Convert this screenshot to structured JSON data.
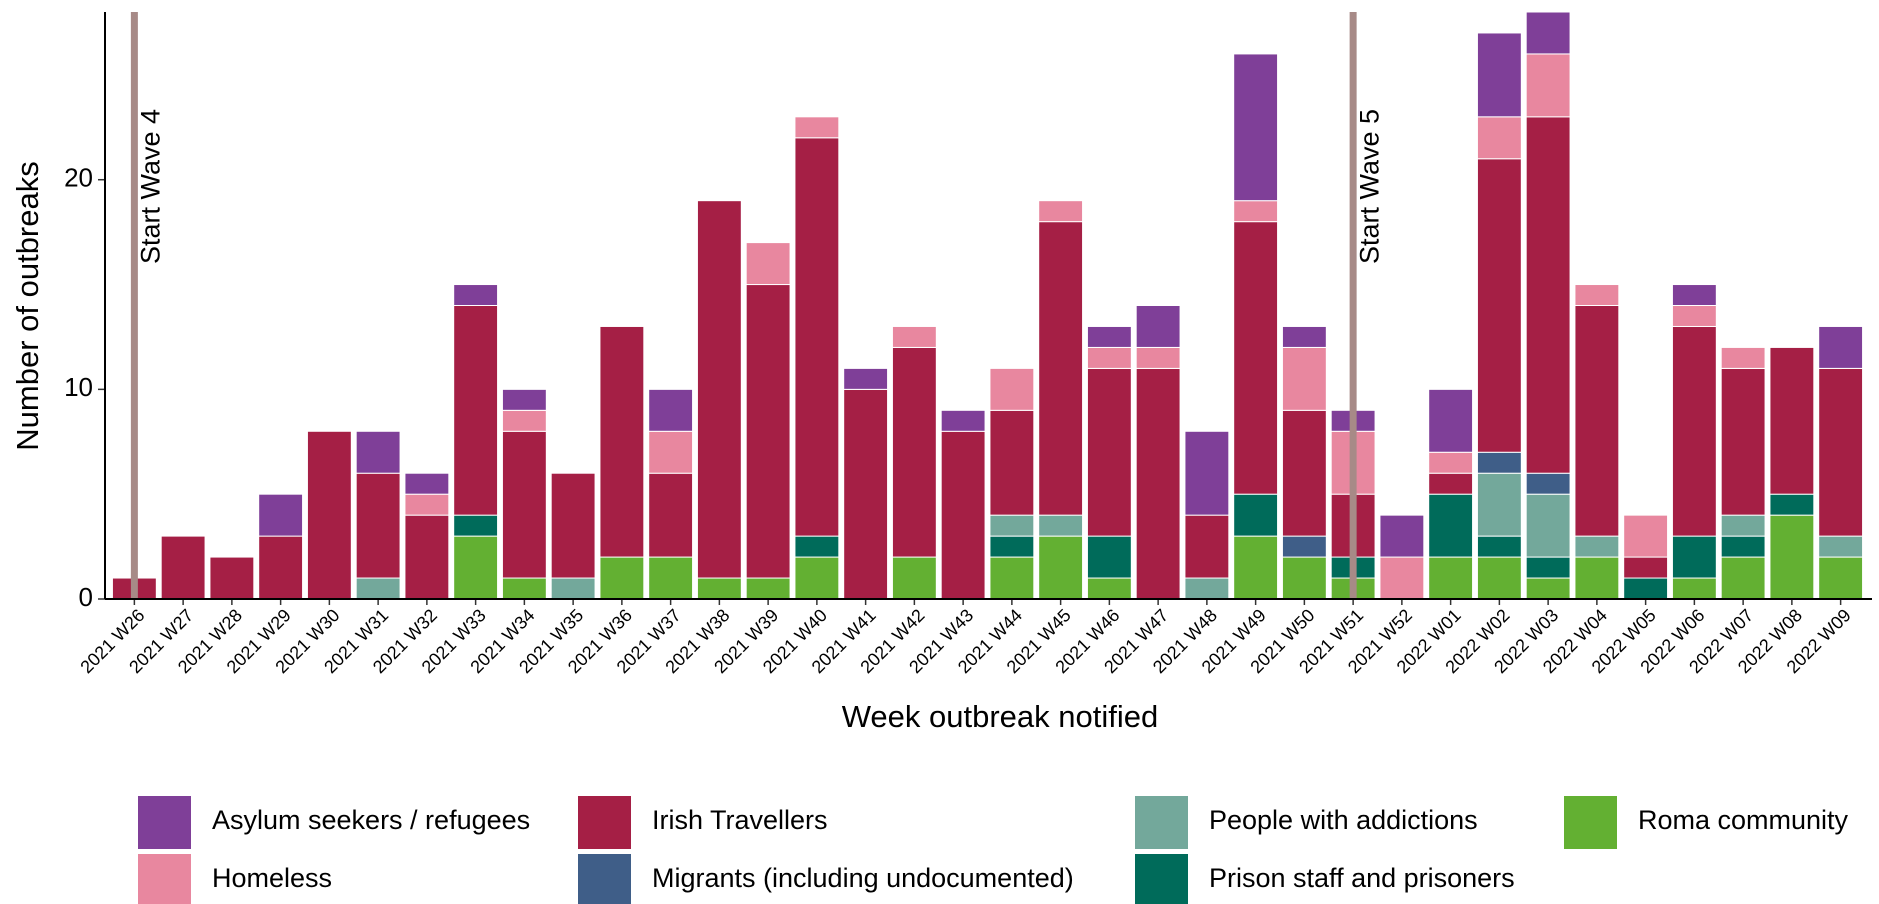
{
  "chart_data": {
    "type": "stacked-bar",
    "x_label": "Week outbreak notified",
    "y_label": "Number of outbreaks",
    "categories": [
      "2021 W26",
      "2021 W27",
      "2021 W28",
      "2021 W29",
      "2021 W30",
      "2021 W31",
      "2021 W32",
      "2021 W33",
      "2021 W34",
      "2021 W35",
      "2021 W36",
      "2021 W37",
      "2021 W38",
      "2021 W39",
      "2021 W40",
      "2021 W41",
      "2021 W42",
      "2021 W43",
      "2021 W44",
      "2021 W45",
      "2021 W46",
      "2021 W47",
      "2021 W48",
      "2021 W49",
      "2021 W50",
      "2021 W51",
      "2021 W52",
      "2022 W01",
      "2022 W02",
      "2022 W03",
      "2022 W04",
      "2022 W05",
      "2022 W06",
      "2022 W07",
      "2022 W08",
      "2022 W09"
    ],
    "series": [
      {
        "name": "Asylum seekers / refugees",
        "color": "#7f3f98",
        "values": [
          0,
          0,
          0,
          2,
          0,
          2,
          1,
          1,
          1,
          0,
          0,
          2,
          0,
          0,
          0,
          1,
          0,
          1,
          0,
          0,
          1,
          2,
          4,
          7,
          1,
          1,
          2,
          3,
          4,
          2,
          0,
          0,
          1,
          0,
          0,
          2
        ]
      },
      {
        "name": "Homeless",
        "color": "#e8879f",
        "values": [
          0,
          0,
          0,
          0,
          0,
          0,
          1,
          0,
          1,
          0,
          0,
          2,
          0,
          2,
          1,
          0,
          1,
          0,
          2,
          1,
          1,
          1,
          0,
          1,
          3,
          3,
          2,
          1,
          2,
          3,
          1,
          2,
          1,
          1,
          0,
          0
        ]
      },
      {
        "name": "Irish Travellers",
        "color": "#a51f45",
        "values": [
          1,
          3,
          2,
          3,
          8,
          5,
          4,
          10,
          7,
          5,
          11,
          4,
          18,
          14,
          19,
          10,
          10,
          8,
          5,
          14,
          8,
          11,
          3,
          13,
          6,
          3,
          0,
          1,
          14,
          17,
          11,
          1,
          10,
          7,
          7,
          8
        ]
      },
      {
        "name": "Migrants (including undocumented)",
        "color": "#3f5e88",
        "values": [
          0,
          0,
          0,
          0,
          0,
          0,
          0,
          0,
          0,
          0,
          0,
          0,
          0,
          0,
          0,
          0,
          0,
          0,
          0,
          0,
          0,
          0,
          0,
          0,
          1,
          0,
          0,
          0,
          1,
          1,
          0,
          0,
          0,
          0,
          0,
          0
        ]
      },
      {
        "name": "People with addictions",
        "color": "#73a89b",
        "values": [
          0,
          0,
          0,
          0,
          0,
          1,
          0,
          0,
          0,
          1,
          0,
          0,
          0,
          0,
          0,
          0,
          0,
          0,
          1,
          1,
          0,
          0,
          1,
          0,
          0,
          0,
          0,
          0,
          3,
          3,
          1,
          0,
          0,
          1,
          0,
          1
        ]
      },
      {
        "name": "Prison staff and prisoners",
        "color": "#006b5a",
        "values": [
          0,
          0,
          0,
          0,
          0,
          0,
          0,
          1,
          0,
          0,
          0,
          0,
          0,
          0,
          1,
          0,
          0,
          0,
          1,
          0,
          2,
          0,
          0,
          2,
          0,
          1,
          0,
          3,
          1,
          1,
          0,
          1,
          2,
          1,
          1,
          0
        ]
      },
      {
        "name": "Roma community",
        "color": "#63b032",
        "values": [
          0,
          0,
          0,
          0,
          0,
          0,
          0,
          3,
          1,
          0,
          2,
          2,
          1,
          1,
          2,
          0,
          2,
          0,
          2,
          3,
          1,
          0,
          0,
          3,
          2,
          1,
          0,
          2,
          2,
          1,
          2,
          0,
          1,
          2,
          4,
          2
        ]
      }
    ],
    "annotations": [
      {
        "text": "Start Wave 4",
        "at": 0
      },
      {
        "text": "Start Wave 5",
        "at": 25
      }
    ],
    "annotation_color": "#a78a87",
    "ylim": [
      0,
      28
    ],
    "yticks": [
      0,
      10,
      20
    ]
  }
}
